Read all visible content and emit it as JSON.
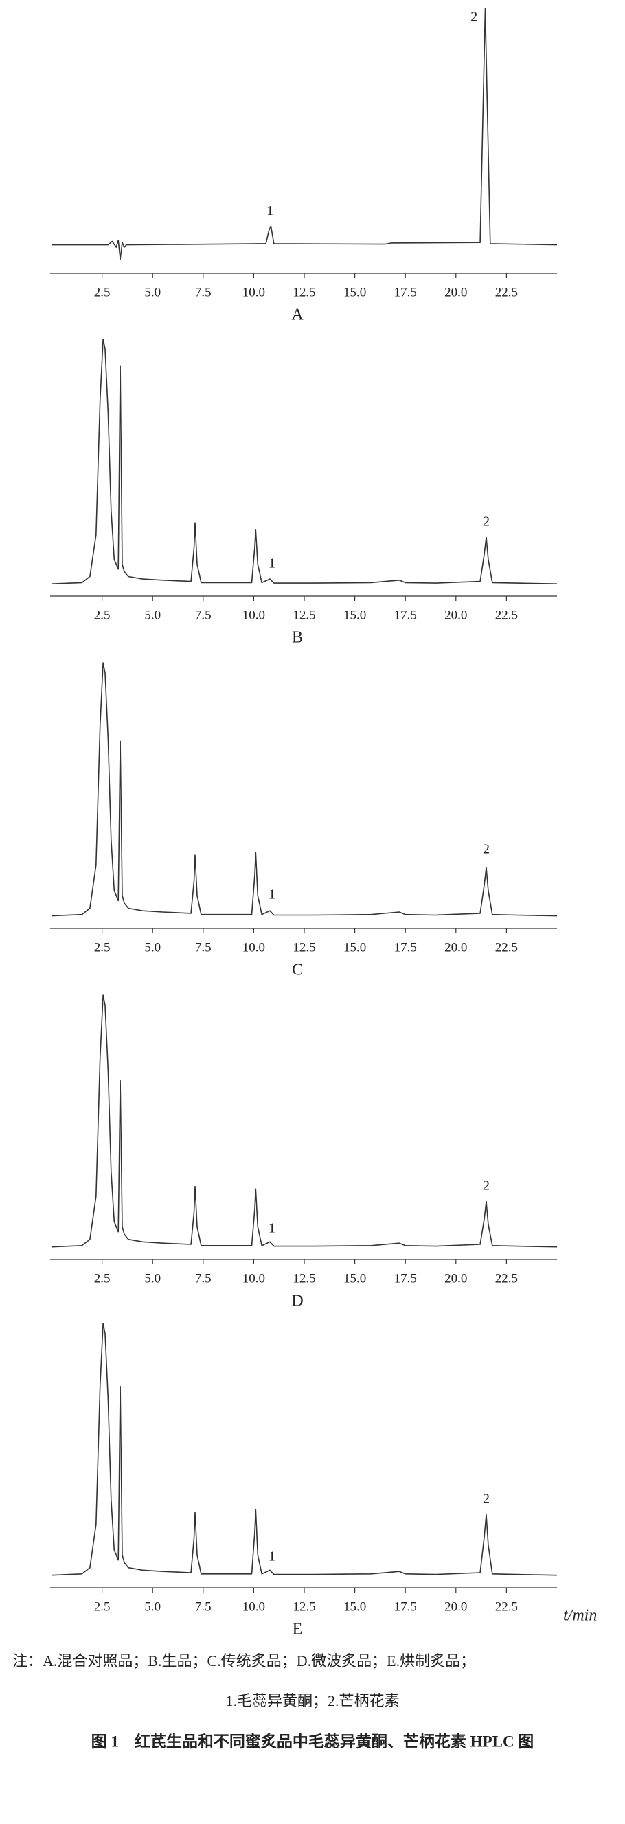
{
  "chart_data": [
    {
      "type": "line",
      "caption": "A",
      "xlim": [
        0,
        25
      ],
      "ylim": [
        -12,
        100
      ],
      "xticks": [
        2.5,
        {
          "value": 5,
          "label": "5.0"
        },
        7.5,
        {
          "value": 10,
          "label": "10.0"
        },
        12.5,
        {
          "value": 15,
          "label": "15.0"
        },
        17.5,
        {
          "value": 20,
          "label": "20.0"
        },
        22.5
      ],
      "x": [
        0,
        2.8,
        3.0,
        3.2,
        3.3,
        3.4,
        3.5,
        3.6,
        3.7,
        10.6,
        10.75,
        10.85,
        11.0,
        16.5,
        16.8,
        21.2,
        21.35,
        21.45,
        21.55,
        21.7,
        25
      ],
      "series": [
        {
          "color": "#333333",
          "values": [
            0,
            0,
            1.5,
            -1,
            2,
            -6,
            1,
            -1,
            0,
            0.5,
            6,
            8,
            0.5,
            0.3,
            0.8,
            1,
            60,
            100,
            60,
            0.5,
            0
          ]
        }
      ],
      "annotations": [
        {
          "text": "1",
          "x": 10.8,
          "y": 14
        },
        {
          "text": "2",
          "x": 20.9,
          "y": 96
        }
      ]
    },
    {
      "type": "line",
      "caption": "B",
      "xlim": [
        0,
        25
      ],
      "ylim": [
        -5,
        100
      ],
      "xticks": [
        2.5,
        {
          "value": 5,
          "label": "5.0"
        },
        7.5,
        {
          "value": 10,
          "label": "10.0"
        },
        12.5,
        {
          "value": 15,
          "label": "15.0"
        },
        17.5,
        {
          "value": 20,
          "label": "20.0"
        },
        22.5
      ],
      "x": [
        0,
        1.5,
        1.9,
        2.2,
        2.4,
        2.55,
        2.65,
        2.8,
        2.95,
        3.1,
        3.3,
        3.4,
        3.5,
        3.6,
        3.8,
        4.5,
        5.5,
        6.9,
        7.05,
        7.1,
        7.2,
        7.4,
        9.9,
        10.05,
        10.1,
        10.2,
        10.4,
        10.8,
        11.0,
        13,
        15.8,
        17.2,
        17.5,
        19,
        21.2,
        21.4,
        21.5,
        21.6,
        21.8,
        23,
        25
      ],
      "series": [
        {
          "color": "#333333",
          "values": [
            0,
            0.5,
            3,
            20,
            75,
            100,
            96,
            70,
            30,
            10,
            6,
            89,
            8,
            5,
            3,
            2,
            1.5,
            1,
            15,
            25,
            8,
            0.5,
            0.5,
            15,
            22,
            8,
            0.5,
            2,
            0.3,
            0.3,
            0.5,
            1.5,
            0.5,
            0.3,
            1,
            12,
            19,
            10,
            0.5,
            0.3,
            0
          ]
        }
      ],
      "annotations": [
        {
          "text": "1",
          "x": 10.9,
          "y": 8
        },
        {
          "text": "2",
          "x": 21.5,
          "y": 25
        }
      ]
    },
    {
      "type": "line",
      "caption": "C",
      "xlim": [
        0,
        25
      ],
      "ylim": [
        -5,
        100
      ],
      "xticks": [
        2.5,
        {
          "value": 5,
          "label": "5.0"
        },
        7.5,
        {
          "value": 10,
          "label": "10.0"
        },
        12.5,
        {
          "value": 15,
          "label": "15.0"
        },
        17.5,
        {
          "value": 20,
          "label": "20.0"
        },
        22.5
      ],
      "x": [
        0,
        1.5,
        1.9,
        2.2,
        2.4,
        2.55,
        2.65,
        2.8,
        2.95,
        3.1,
        3.3,
        3.4,
        3.5,
        3.6,
        3.8,
        4.5,
        5.5,
        6.9,
        7.05,
        7.1,
        7.2,
        7.4,
        9.9,
        10.05,
        10.1,
        10.2,
        10.4,
        10.8,
        11.0,
        13,
        15.8,
        17.2,
        17.5,
        19,
        21.2,
        21.4,
        21.5,
        21.6,
        21.8,
        23,
        25
      ],
      "series": [
        {
          "color": "#333333",
          "values": [
            0,
            0.5,
            3,
            20,
            75,
            100,
            96,
            70,
            30,
            10,
            6,
            69,
            8,
            5,
            3,
            2,
            1.5,
            1,
            14,
            24,
            8,
            0.5,
            0.5,
            16,
            25,
            8,
            0.5,
            2,
            0.3,
            0.3,
            0.5,
            1.5,
            0.5,
            0.3,
            1,
            12,
            19,
            10,
            0.5,
            0.3,
            0
          ]
        }
      ],
      "annotations": [
        {
          "text": "1",
          "x": 10.9,
          "y": 8
        },
        {
          "text": "2",
          "x": 21.5,
          "y": 26
        }
      ]
    },
    {
      "type": "line",
      "caption": "D",
      "xlim": [
        0,
        25
      ],
      "ylim": [
        -5,
        100
      ],
      "xticks": [
        2.5,
        {
          "value": 5,
          "label": "5.0"
        },
        7.5,
        {
          "value": 10,
          "label": "10.0"
        },
        12.5,
        {
          "value": 15,
          "label": "15.0"
        },
        17.5,
        {
          "value": 20,
          "label": "20.0"
        },
        22.5
      ],
      "x": [
        0,
        1.5,
        1.9,
        2.2,
        2.4,
        2.55,
        2.65,
        2.8,
        2.95,
        3.1,
        3.3,
        3.4,
        3.5,
        3.6,
        3.8,
        4.5,
        5.5,
        6.9,
        7.05,
        7.1,
        7.2,
        7.4,
        9.9,
        10.05,
        10.1,
        10.2,
        10.4,
        10.8,
        11.0,
        13,
        15.8,
        17.2,
        17.5,
        19,
        21.2,
        21.4,
        21.5,
        21.6,
        21.8,
        23,
        25
      ],
      "series": [
        {
          "color": "#333333",
          "values": [
            0,
            0.5,
            3,
            20,
            75,
            100,
            96,
            70,
            30,
            10,
            6,
            66,
            8,
            5,
            3,
            2,
            1.5,
            1,
            14,
            24,
            8,
            0.5,
            0.5,
            15,
            23,
            8,
            0.5,
            2,
            0.3,
            0.3,
            0.5,
            1.5,
            0.5,
            0.3,
            1,
            11,
            18,
            9,
            0.5,
            0.3,
            0
          ]
        }
      ],
      "annotations": [
        {
          "text": "1",
          "x": 10.9,
          "y": 7
        },
        {
          "text": "2",
          "x": 21.5,
          "y": 24
        }
      ]
    },
    {
      "type": "line",
      "caption": "E",
      "xlabel": "t/min",
      "xlim": [
        0,
        25
      ],
      "ylim": [
        -5,
        100
      ],
      "xticks": [
        2.5,
        {
          "value": 5,
          "label": "5.0"
        },
        7.5,
        {
          "value": 10,
          "label": "10.0"
        },
        12.5,
        {
          "value": 15,
          "label": "15.0"
        },
        17.5,
        {
          "value": 20,
          "label": "20.0"
        },
        22.5
      ],
      "x": [
        0,
        1.5,
        1.9,
        2.2,
        2.4,
        2.55,
        2.65,
        2.8,
        2.95,
        3.1,
        3.3,
        3.4,
        3.5,
        3.6,
        3.8,
        4.5,
        5.5,
        6.9,
        7.05,
        7.1,
        7.2,
        7.4,
        9.9,
        10.05,
        10.1,
        10.2,
        10.4,
        10.8,
        11.0,
        13,
        15.8,
        17.2,
        17.5,
        19,
        21.2,
        21.4,
        21.5,
        21.6,
        21.8,
        23,
        25
      ],
      "series": [
        {
          "color": "#333333",
          "values": [
            0,
            0.5,
            3,
            20,
            75,
            100,
            96,
            70,
            30,
            10,
            6,
            75,
            8,
            5,
            3,
            2,
            1.5,
            1,
            15,
            25,
            8,
            0.5,
            0.5,
            17,
            26,
            8,
            0.5,
            2,
            0.3,
            0.3,
            0.5,
            1.5,
            0.5,
            0.3,
            1,
            15,
            24,
            12,
            0.5,
            0.3,
            0
          ]
        }
      ],
      "annotations": [
        {
          "text": "1",
          "x": 10.9,
          "y": 7
        },
        {
          "text": "2",
          "x": 21.5,
          "y": 30
        }
      ]
    }
  ],
  "note": "注：A.混合对照品；B.生品；C.传统炙品；D.微波炙品；E.烘制炙品；",
  "note2": "1.毛蕊异黄酮；2.芒柄花素",
  "figure_title": "图 1　红芪生品和不同蜜炙品中毛蕊异黄酮、芒柄花素 HPLC 图"
}
